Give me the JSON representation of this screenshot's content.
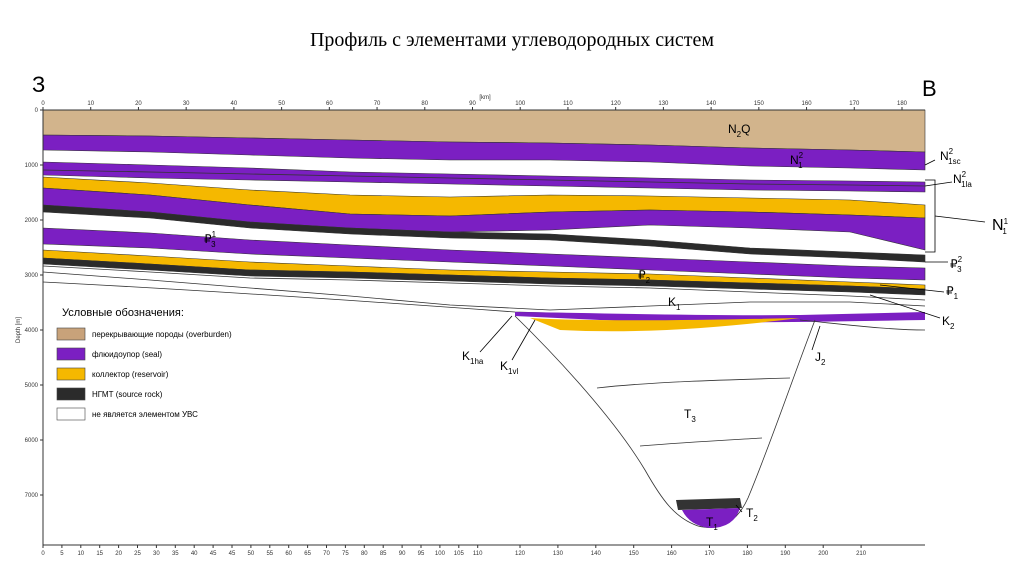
{
  "title": "Профиль с элементами углеводородных систем",
  "direction": {
    "west": "З",
    "east": "В"
  },
  "axes": {
    "x_unit": "[km]",
    "y_label": "Depth [m]",
    "top_ticks": [
      "0",
      "10",
      "20",
      "30",
      "40",
      "50",
      "60",
      "70",
      "80",
      "90",
      "100",
      "110",
      "120",
      "130",
      "140",
      "150",
      "160",
      "170",
      "180"
    ],
    "depth_ticks": [
      "0",
      "1000",
      "2000",
      "3000",
      "4000",
      "5000",
      "6000",
      "7000"
    ],
    "bottom_ticks": [
      "0",
      "5",
      "10",
      "15",
      "20",
      "25",
      "30",
      "35",
      "40",
      "45",
      "45",
      "50",
      "55",
      "60",
      "65",
      "70",
      "75",
      "80",
      "85",
      "90",
      "95",
      "100",
      "105",
      "110",
      "120",
      "130",
      "140",
      "150",
      "160",
      "170",
      "180",
      "190",
      "200",
      "210"
    ]
  },
  "legend": {
    "title": "Условные обозначения:",
    "items": [
      "перекрывающие породы (overburden)",
      "флюидоупор (seal)",
      "коллектор (reservoir)",
      "НГМТ (source rock)",
      "не является элементом УВС"
    ]
  },
  "layer_labels": [
    {
      "main": "N",
      "sub": "2",
      "rest": "Q"
    },
    {
      "main": "N",
      "sup": "2",
      "sub": "1"
    },
    {
      "main": "N",
      "sup": "2",
      "sub": "1sc"
    },
    {
      "main": "N",
      "sup": "2",
      "sub": "1la"
    },
    {
      "main": "N",
      "sup": "1",
      "sub": "1"
    },
    {
      "main": "₽",
      "sup": "1",
      "sub": "3"
    },
    {
      "main": "₽",
      "sup": "2",
      "sub": "3"
    },
    {
      "main": "₽",
      "sub": "2"
    },
    {
      "main": "₽",
      "sub": "1"
    },
    {
      "main": "K",
      "sub": "1"
    },
    {
      "main": "K",
      "sub": "2"
    },
    {
      "main": "K",
      "sub": "1ha"
    },
    {
      "main": "K",
      "sub": "1vl"
    },
    {
      "main": "J",
      "sub": "2"
    },
    {
      "main": "T",
      "sub": "3"
    },
    {
      "main": "T",
      "sub": "2"
    },
    {
      "main": "T",
      "sub": "1"
    }
  ]
}
